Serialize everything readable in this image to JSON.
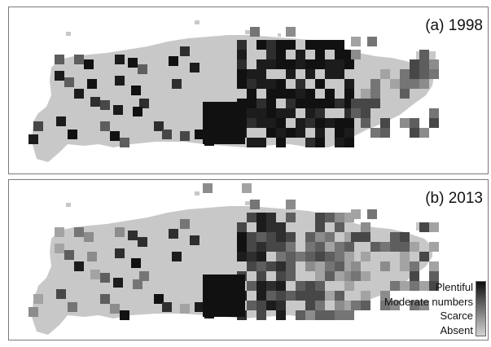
{
  "panels": [
    {
      "label": "(a) 1998",
      "year": 1998
    },
    {
      "label": "(b) 2013",
      "year": 2013
    }
  ],
  "legend": {
    "items": [
      "Plentiful",
      "Moderate numbers",
      "Scarce",
      "Absent"
    ],
    "colors": {
      "Plentiful": "#111111",
      "Moderate numbers": "#555555",
      "Scarce": "#8c8c8c",
      "Absent": "#c8c8c8"
    }
  },
  "map": {
    "land_color": "#c8c8c8",
    "frame_color": "#7a7a7a"
  }
}
